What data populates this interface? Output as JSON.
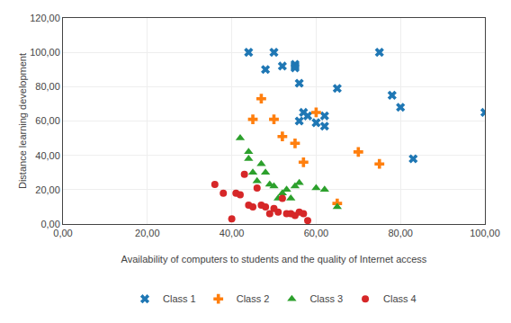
{
  "chart_data": {
    "type": "scatter",
    "xlabel": "Availability of computers to students and the quality of Internet access",
    "ylabel": "Distance learning development",
    "series": [
      {
        "name": "Class 1",
        "marker": "x",
        "x": [
          44,
          48,
          50,
          52,
          55,
          55,
          55,
          56,
          56,
          57,
          58,
          60,
          62,
          62,
          65,
          75,
          78,
          80,
          83,
          100
        ],
        "values": [
          100,
          90,
          100,
          92,
          93,
          92,
          91,
          82,
          60,
          65,
          63,
          59,
          63,
          57,
          79,
          100,
          75,
          68,
          38,
          65
        ]
      },
      {
        "name": "Class 2",
        "marker": "plus",
        "x": [
          45,
          47,
          50,
          52,
          55,
          57,
          60,
          65,
          70,
          75
        ],
        "values": [
          61,
          73,
          61,
          51,
          47,
          36,
          65,
          12,
          42,
          35
        ]
      },
      {
        "name": "Class 3",
        "marker": "triangle",
        "x": [
          42,
          44,
          44,
          45,
          46,
          47,
          48,
          49,
          50,
          51,
          52,
          53,
          54,
          55,
          56,
          60,
          62,
          65
        ],
        "values": [
          50,
          38,
          42,
          30,
          25,
          35,
          30,
          23,
          22,
          15,
          18,
          20,
          15,
          22,
          24,
          21,
          20,
          10
        ]
      },
      {
        "name": "Class 4",
        "marker": "circle",
        "x": [
          36,
          38,
          40,
          41,
          42,
          43,
          44,
          45,
          46,
          47,
          48,
          49,
          50,
          51,
          52,
          53,
          54,
          55,
          56,
          57,
          58
        ],
        "values": [
          23,
          18,
          3,
          18,
          17,
          29,
          11,
          10,
          21,
          11,
          10,
          6,
          9,
          7,
          15,
          6,
          6,
          5,
          7,
          6,
          2
        ]
      }
    ],
    "xlim": [
      0,
      100
    ],
    "ylim": [
      0,
      120
    ],
    "xticks": [
      {
        "value": 0,
        "label": "0,00"
      },
      {
        "value": 20,
        "label": "20,00"
      },
      {
        "value": 40,
        "label": "40,00"
      },
      {
        "value": 60,
        "label": "60,00"
      },
      {
        "value": 80,
        "label": "80,00"
      },
      {
        "value": 100,
        "label": "100,00"
      }
    ],
    "yticks": [
      {
        "value": 0,
        "label": "0,00"
      },
      {
        "value": 20,
        "label": "20,00"
      },
      {
        "value": 40,
        "label": "40,00"
      },
      {
        "value": 60,
        "label": "60,00"
      },
      {
        "value": 80,
        "label": "80,00"
      },
      {
        "value": 100,
        "label": "100,00"
      },
      {
        "value": 120,
        "label": "120,00"
      }
    ],
    "grid": true,
    "legend": "bottom"
  }
}
